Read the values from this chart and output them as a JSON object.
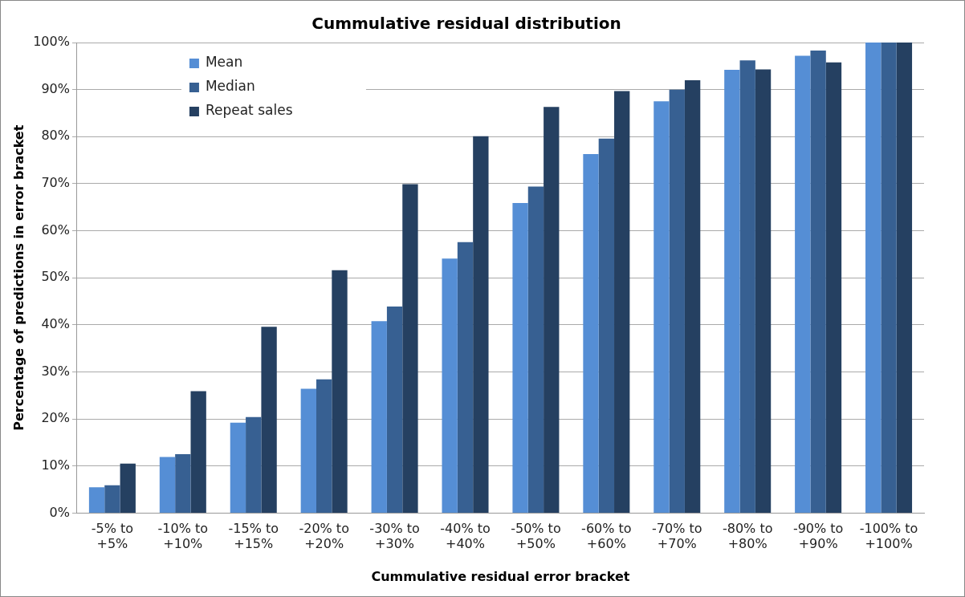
{
  "chart_data": {
    "type": "bar",
    "title": "Cummulative residual distribution",
    "xlabel": "Cummulative residual error bracket",
    "ylabel": "Percentage of predictions in error bracket",
    "categories": [
      "-5% to +5%",
      "-10% to +10%",
      "-15% to +15%",
      "-20% to +20%",
      "-30% to +30%",
      "-40% to +40%",
      "-50% to +50%",
      "-60% to +60%",
      "-70% to +70%",
      "-80% to +80%",
      "-90% to +90%",
      "-100% to +100%"
    ],
    "series": [
      {
        "name": "Mean",
        "color": "#558ed5",
        "values": [
          5.5,
          11.9,
          19.2,
          26.4,
          40.8,
          54.1,
          65.9,
          76.3,
          87.5,
          94.2,
          97.2,
          100
        ]
      },
      {
        "name": "Median",
        "color": "#376092",
        "values": [
          5.9,
          12.5,
          20.4,
          28.4,
          43.9,
          57.6,
          69.4,
          79.6,
          90.0,
          96.2,
          98.3,
          100
        ]
      },
      {
        "name": "Repeat sales",
        "color": "#254061",
        "values": [
          10.5,
          25.9,
          39.6,
          51.6,
          69.9,
          80.1,
          86.3,
          89.7,
          92.0,
          94.3,
          95.8,
          100
        ]
      }
    ],
    "ylim": [
      0,
      100
    ],
    "yticks": [
      {
        "value": 0,
        "label": "0%"
      },
      {
        "value": 10,
        "label": "10%"
      },
      {
        "value": 20,
        "label": "20%"
      },
      {
        "value": 30,
        "label": "30%"
      },
      {
        "value": 40,
        "label": "40%"
      },
      {
        "value": 50,
        "label": "50%"
      },
      {
        "value": 60,
        "label": "60%"
      },
      {
        "value": 70,
        "label": "70%"
      },
      {
        "value": 80,
        "label": "80%"
      },
      {
        "value": 90,
        "label": "90%"
      },
      {
        "value": 100,
        "label": "100%"
      }
    ],
    "grid": "y",
    "legend": "top left"
  }
}
